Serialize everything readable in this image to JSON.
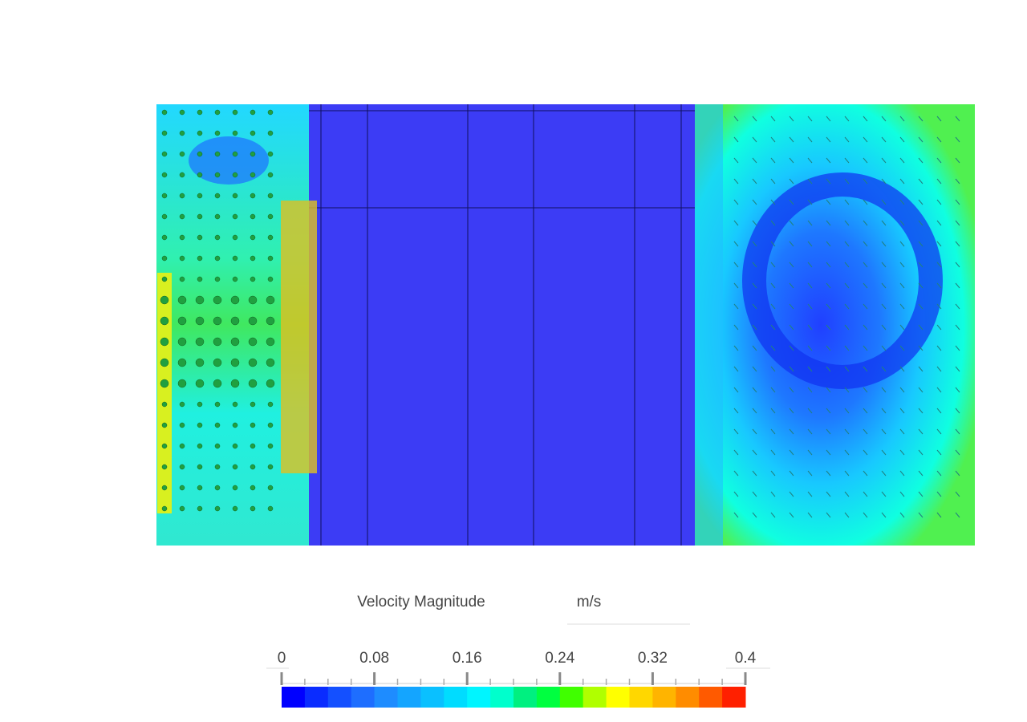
{
  "legend": {
    "title": "Velocity Magnitude",
    "unit": "m/s",
    "range": [
      0,
      0.4
    ],
    "ticks": [
      0,
      0.08,
      0.16,
      0.24,
      0.32,
      0.4
    ],
    "colors": [
      "#0000ff",
      "#0a2cff",
      "#1450ff",
      "#1e6eff",
      "#1e8cff",
      "#14a5ff",
      "#0ac0ff",
      "#00dcff",
      "#00f5ff",
      "#00ffcc",
      "#00f080",
      "#00ff40",
      "#40ff00",
      "#b0ff00",
      "#ffff00",
      "#ffd700",
      "#ffb400",
      "#ff8c00",
      "#ff5a00",
      "#ff2000"
    ]
  }
}
